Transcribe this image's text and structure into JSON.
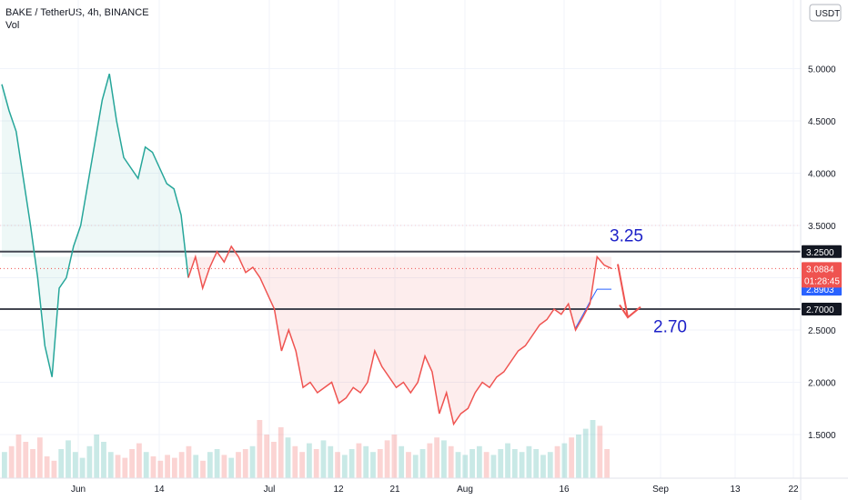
{
  "header": {
    "title": "BAKE / TetherUS, 4h, BINANCE",
    "volume_label": "Vol"
  },
  "currency_badge": "USDT",
  "price_tags": {
    "resistance": "3.2500",
    "last_price": "3.0884",
    "countdown": "01:28:45",
    "ma_value": "2.8903",
    "support": "2.7000"
  },
  "annotations": {
    "upper_target": "3.25",
    "lower_target": "2.70"
  },
  "colors": {
    "up": "#26a69a",
    "down": "#ef5350",
    "level_line": "#434651",
    "annotation": "#1e22c8",
    "ma_line": "#2962ff"
  },
  "chart_data": {
    "type": "line",
    "x_ticks": [
      "Jun",
      "14",
      "Jul",
      "12",
      "21",
      "Aug",
      "16",
      "Sep",
      "13",
      "22"
    ],
    "y_ticks": [
      "5.0000",
      "4.5000",
      "4.0000",
      "3.5000",
      "3.0000",
      "2.5000",
      "2.0000",
      "1.5000"
    ],
    "ylim": [
      1.0,
      5.5
    ],
    "horizontal_levels": [
      3.25,
      2.7
    ],
    "series": [
      {
        "values": [
          4.85,
          4.6,
          4.4,
          3.95,
          3.5,
          3.0,
          2.35,
          2.05,
          2.9,
          3.0,
          3.3,
          3.5,
          3.9,
          4.3,
          4.7,
          4.95,
          4.5,
          4.15,
          4.05,
          3.95,
          4.25,
          4.2,
          4.05,
          3.9,
          3.85,
          3.6,
          3.0,
          3.2,
          2.9,
          3.1,
          3.25,
          3.15,
          3.3,
          3.2,
          3.05,
          3.1,
          3.0,
          2.85,
          2.7,
          2.3,
          2.5,
          2.3,
          1.95,
          2.0,
          1.9,
          1.95,
          2.0,
          1.8,
          1.85,
          1.95,
          1.9,
          2.0,
          2.3,
          2.15,
          2.05,
          1.95,
          2.0,
          1.9,
          2.0,
          2.25,
          2.1,
          1.7,
          1.9,
          1.6,
          1.7,
          1.75,
          1.9,
          2.0,
          1.95,
          2.05,
          2.1,
          2.2,
          2.3,
          2.35,
          2.45,
          2.55,
          2.6,
          2.7,
          2.65,
          2.75,
          2.5,
          2.62,
          2.75,
          3.2,
          3.12,
          3.0884
        ]
      }
    ],
    "volume": [
      18,
      22,
      30,
      25,
      20,
      28,
      15,
      12,
      20,
      26,
      18,
      14,
      22,
      30,
      25,
      18,
      16,
      14,
      20,
      24,
      18,
      15,
      12,
      16,
      14,
      18,
      22,
      16,
      12,
      18,
      20,
      16,
      14,
      18,
      20,
      22,
      40,
      30,
      25,
      35,
      28,
      22,
      18,
      24,
      20,
      26,
      22,
      18,
      16,
      20,
      24,
      22,
      18,
      20,
      26,
      30,
      22,
      18,
      16,
      20,
      24,
      28,
      26,
      22,
      18,
      16,
      20,
      22,
      18,
      16,
      20,
      24,
      20,
      18,
      22,
      20,
      16,
      18,
      22,
      24,
      28,
      30,
      34,
      40,
      36,
      20
    ]
  }
}
